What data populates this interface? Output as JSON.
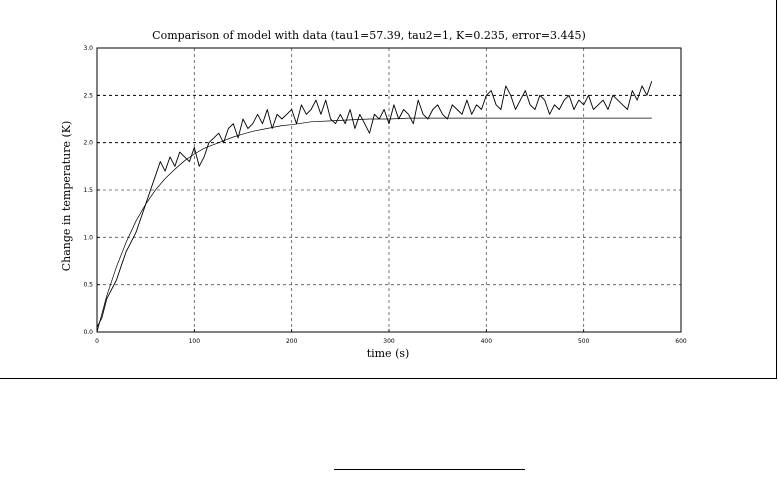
{
  "chart_data": {
    "type": "line",
    "title": "Comparison of model with data (tau1=57.39, tau2=1, K=0.235, error=3.445)",
    "xlabel": "time (s)",
    "ylabel": "Change in temperature (K)",
    "xlim": [
      0,
      600
    ],
    "ylim": [
      0.0,
      3.0
    ],
    "xticks": [
      "0",
      "100",
      "200",
      "300",
      "400",
      "500",
      "600"
    ],
    "yticks": [
      "0.0",
      "0.5",
      "1.0",
      "1.5",
      "2.0",
      "2.5",
      "3.0"
    ],
    "grid": true,
    "series": [
      {
        "style": "noisy-measured",
        "x": [
          0,
          5,
          10,
          15,
          20,
          25,
          30,
          35,
          40,
          45,
          50,
          55,
          60,
          65,
          70,
          75,
          80,
          85,
          90,
          95,
          100,
          105,
          110,
          115,
          120,
          125,
          130,
          135,
          140,
          145,
          150,
          155,
          160,
          165,
          170,
          175,
          180,
          185,
          190,
          195,
          200,
          205,
          210,
          215,
          220,
          225,
          230,
          235,
          240,
          245,
          250,
          255,
          260,
          265,
          270,
          275,
          280,
          285,
          290,
          295,
          300,
          305,
          310,
          315,
          320,
          325,
          330,
          335,
          340,
          345,
          350,
          355,
          360,
          365,
          370,
          375,
          380,
          385,
          390,
          395,
          400,
          405,
          410,
          415,
          420,
          425,
          430,
          435,
          440,
          445,
          450,
          455,
          460,
          465,
          470,
          475,
          480,
          485,
          490,
          495,
          500,
          505,
          510,
          515,
          520,
          525,
          530,
          535,
          540,
          545,
          550,
          555,
          560,
          565,
          570
        ],
        "y": [
          0.05,
          0.15,
          0.35,
          0.45,
          0.55,
          0.7,
          0.85,
          0.95,
          1.05,
          1.2,
          1.35,
          1.5,
          1.65,
          1.8,
          1.7,
          1.85,
          1.75,
          1.9,
          1.85,
          1.8,
          1.95,
          1.75,
          1.85,
          2.0,
          2.05,
          2.1,
          2.0,
          2.15,
          2.2,
          2.05,
          2.25,
          2.15,
          2.2,
          2.3,
          2.2,
          2.35,
          2.15,
          2.3,
          2.25,
          2.3,
          2.35,
          2.2,
          2.4,
          2.3,
          2.35,
          2.45,
          2.3,
          2.45,
          2.25,
          2.2,
          2.3,
          2.2,
          2.35,
          2.15,
          2.3,
          2.2,
          2.1,
          2.3,
          2.25,
          2.35,
          2.2,
          2.4,
          2.25,
          2.35,
          2.3,
          2.2,
          2.45,
          2.3,
          2.25,
          2.35,
          2.4,
          2.3,
          2.25,
          2.4,
          2.35,
          2.3,
          2.45,
          2.3,
          2.4,
          2.35,
          2.5,
          2.55,
          2.4,
          2.35,
          2.6,
          2.5,
          2.35,
          2.45,
          2.55,
          2.4,
          2.35,
          2.5,
          2.45,
          2.3,
          2.4,
          2.35,
          2.45,
          2.5,
          2.35,
          2.45,
          2.4,
          2.5,
          2.35,
          2.4,
          2.45,
          2.35,
          2.5,
          2.45,
          2.4,
          2.35,
          2.55,
          2.45,
          2.6,
          2.5,
          2.65
        ]
      },
      {
        "style": "model-fit",
        "x": [
          0,
          10,
          20,
          30,
          40,
          50,
          60,
          70,
          80,
          90,
          100,
          110,
          120,
          130,
          140,
          150,
          160,
          170,
          180,
          190,
          200,
          220,
          240,
          260,
          280,
          300,
          320,
          340,
          360,
          380,
          400,
          420,
          440,
          460,
          480,
          500,
          520,
          540,
          560,
          570
        ],
        "y": [
          0.0,
          0.38,
          0.69,
          0.95,
          1.17,
          1.35,
          1.5,
          1.62,
          1.72,
          1.81,
          1.88,
          1.94,
          1.98,
          2.02,
          2.06,
          2.09,
          2.12,
          2.14,
          2.16,
          2.18,
          2.19,
          2.22,
          2.23,
          2.24,
          2.25,
          2.25,
          2.26,
          2.26,
          2.26,
          2.26,
          2.26,
          2.26,
          2.26,
          2.26,
          2.26,
          2.26,
          2.26,
          2.26,
          2.26,
          2.26
        ]
      }
    ]
  }
}
